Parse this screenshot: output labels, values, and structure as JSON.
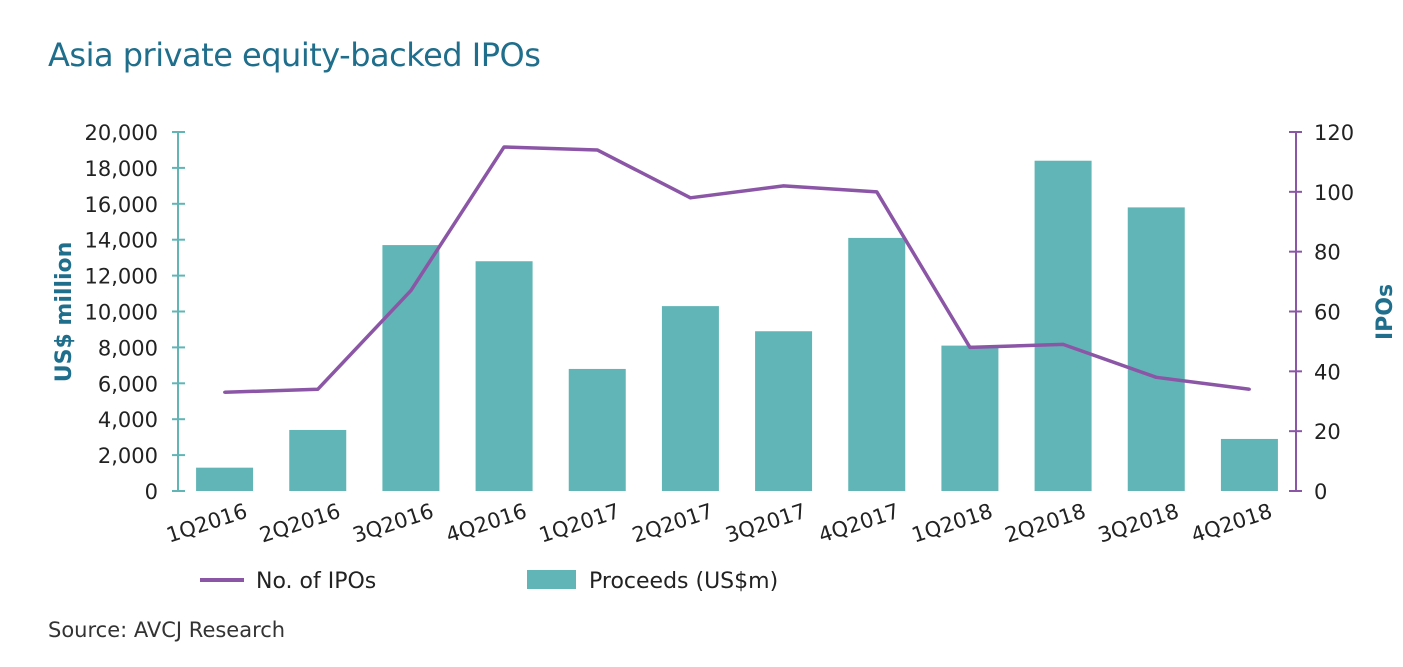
{
  "title": "Asia private equity-backed IPOs",
  "source": "Source: AVCJ Research",
  "colors": {
    "bar": "#62b5b6",
    "line": "#8b56a6",
    "left_axis": "#62b5b6",
    "right_axis": "#8b56a6",
    "title": "#1f6e8c"
  },
  "chart_data": {
    "type": "bar",
    "title": "Asia private equity-backed IPOs",
    "categories": [
      "1Q2016",
      "2Q2016",
      "3Q2016",
      "4Q2016",
      "1Q2017",
      "2Q2017",
      "3Q2017",
      "4Q2017",
      "1Q2018",
      "2Q2018",
      "3Q2018",
      "4Q2018"
    ],
    "series": [
      {
        "name": "Proceeds (US$m)",
        "type": "bar",
        "axis": "left",
        "values": [
          1300,
          3400,
          13700,
          12800,
          6800,
          10300,
          8900,
          14100,
          8100,
          18400,
          15800,
          2900
        ]
      },
      {
        "name": "No. of IPOs",
        "type": "line",
        "axis": "right",
        "values": [
          33,
          34,
          67,
          115,
          114,
          98,
          102,
          100,
          48,
          49,
          38,
          34
        ]
      }
    ],
    "ylabel": "US$ million",
    "y2label": "IPOs",
    "ylim": [
      0,
      20000
    ],
    "y2lim": [
      0,
      120
    ],
    "yticks": [
      "0",
      "2,000",
      "4,000",
      "6,000",
      "8,000",
      "10,000",
      "12,000",
      "14,000",
      "16,000",
      "18,000",
      "20,000"
    ],
    "y2ticks": [
      "0",
      "20",
      "40",
      "60",
      "80",
      "100",
      "120"
    ],
    "legend": [
      "No. of IPOs",
      "Proceeds (US$m)"
    ],
    "legend_position": "bottom-left"
  }
}
